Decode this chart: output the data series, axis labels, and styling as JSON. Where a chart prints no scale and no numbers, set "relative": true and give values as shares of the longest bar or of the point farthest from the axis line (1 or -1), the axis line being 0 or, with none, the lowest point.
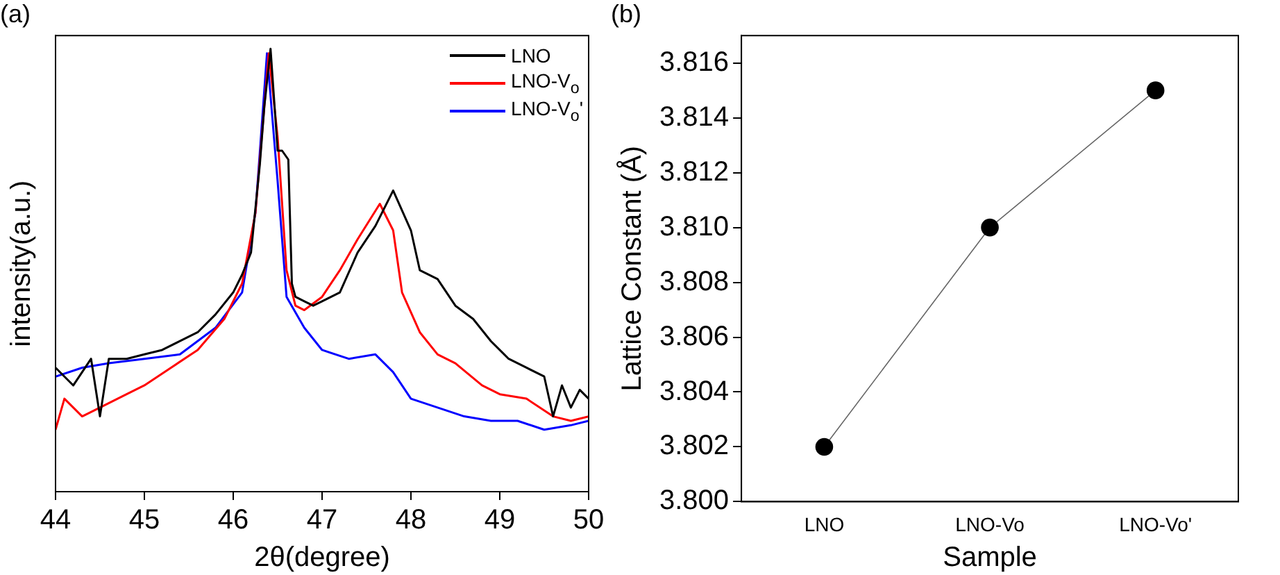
{
  "chart_data": [
    {
      "type": "line",
      "title": "(a)",
      "xlabel": "2θ(degree)",
      "ylabel": "intensity(a.u.)",
      "relative": true,
      "xlim": [
        44,
        50
      ],
      "xticks": [
        44,
        45,
        46,
        47,
        48,
        49,
        50
      ],
      "legend": "top right",
      "grid": false,
      "series": [
        {
          "name": "LNO",
          "color": "#000000",
          "x": [
            44.0,
            44.2,
            44.4,
            44.5,
            44.6,
            44.8,
            45.0,
            45.2,
            45.4,
            45.6,
            45.8,
            46.0,
            46.1,
            46.2,
            46.3,
            46.35,
            46.42,
            46.5,
            46.55,
            46.62,
            46.66,
            46.7,
            46.8,
            46.9,
            47.0,
            47.2,
            47.4,
            47.6,
            47.8,
            48.0,
            48.1,
            48.3,
            48.5,
            48.7,
            48.9,
            49.1,
            49.3,
            49.5,
            49.6,
            49.7,
            49.8,
            49.9,
            50.0
          ],
          "values": [
            0.28,
            0.24,
            0.3,
            0.17,
            0.3,
            0.3,
            0.31,
            0.32,
            0.34,
            0.36,
            0.4,
            0.45,
            0.49,
            0.54,
            0.74,
            0.87,
            1.0,
            0.77,
            0.77,
            0.75,
            0.47,
            0.44,
            0.43,
            0.42,
            0.43,
            0.45,
            0.54,
            0.6,
            0.68,
            0.59,
            0.5,
            0.48,
            0.42,
            0.39,
            0.34,
            0.3,
            0.28,
            0.26,
            0.17,
            0.24,
            0.19,
            0.23,
            0.21
          ]
        },
        {
          "name": "LNO-V$_{o}$",
          "color": "#ff0000",
          "x": [
            44.0,
            44.1,
            44.3,
            44.5,
            44.8,
            45.0,
            45.3,
            45.6,
            45.9,
            46.1,
            46.25,
            46.4,
            46.5,
            46.6,
            46.7,
            46.8,
            47.0,
            47.2,
            47.4,
            47.65,
            47.8,
            47.9,
            48.1,
            48.3,
            48.5,
            48.8,
            49.0,
            49.3,
            49.6,
            49.8,
            50.0
          ],
          "values": [
            0.14,
            0.21,
            0.17,
            0.19,
            0.22,
            0.24,
            0.28,
            0.32,
            0.39,
            0.47,
            0.63,
            0.99,
            0.8,
            0.5,
            0.42,
            0.41,
            0.44,
            0.5,
            0.57,
            0.65,
            0.59,
            0.45,
            0.36,
            0.31,
            0.29,
            0.24,
            0.22,
            0.21,
            0.17,
            0.16,
            0.17
          ]
        },
        {
          "name": "LNO-V$_{o}$'",
          "color": "#0000ff",
          "x": [
            44.0,
            44.3,
            44.6,
            45.0,
            45.4,
            45.8,
            46.1,
            46.25,
            46.38,
            46.5,
            46.6,
            46.8,
            47.0,
            47.3,
            47.6,
            47.8,
            48.0,
            48.3,
            48.6,
            48.9,
            49.2,
            49.5,
            49.8,
            50.0
          ],
          "values": [
            0.26,
            0.28,
            0.29,
            0.3,
            0.31,
            0.37,
            0.45,
            0.63,
            0.99,
            0.7,
            0.44,
            0.37,
            0.32,
            0.3,
            0.31,
            0.27,
            0.21,
            0.19,
            0.17,
            0.16,
            0.16,
            0.14,
            0.15,
            0.16
          ]
        }
      ]
    },
    {
      "type": "line",
      "title": "(b)",
      "xlabel": "Sample",
      "ylabel": "Lattice Constant (Å)",
      "categories": [
        "LNO",
        "LNO-Vo",
        "LNO-Vo'"
      ],
      "ylim": [
        3.8,
        3.817
      ],
      "yticks": [
        {
          "value": 3.8,
          "label": "3.800"
        },
        {
          "value": 3.802,
          "label": "3.802"
        },
        {
          "value": 3.804,
          "label": "3.804"
        },
        {
          "value": 3.806,
          "label": "3.806"
        },
        {
          "value": 3.808,
          "label": "3.808"
        },
        {
          "value": 3.81,
          "label": "3.810"
        },
        {
          "value": 3.812,
          "label": "3.812"
        },
        {
          "value": 3.814,
          "label": "3.814"
        },
        {
          "value": 3.816,
          "label": "3.816"
        }
      ],
      "marker": "circle",
      "grid": false,
      "legend": false,
      "series": [
        {
          "color": "#000000",
          "values": [
            3.802,
            3.81,
            3.815
          ]
        }
      ]
    }
  ]
}
